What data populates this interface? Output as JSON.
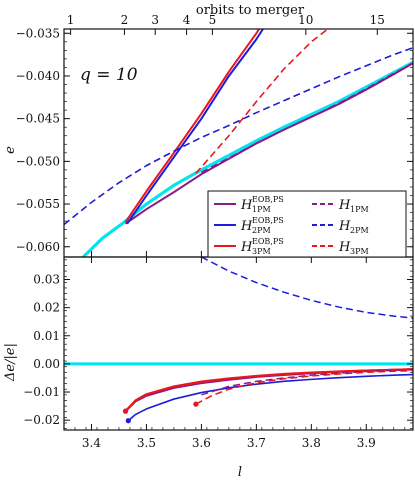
{
  "chart_data": [
    {
      "panel": "top",
      "type": "line",
      "ylabel": "e",
      "secondary_xlabel": "orbits to merger",
      "annotation": "q = 10",
      "xlim": [
        3.35,
        3.985
      ],
      "ylim": [
        -0.0612,
        -0.0345
      ],
      "yticks": [
        -0.035,
        -0.04,
        -0.045,
        -0.05,
        -0.055,
        -0.06
      ],
      "yticklabels": [
        "−0.035",
        "−0.040",
        "−0.045",
        "−0.050",
        "−0.055",
        "−0.060"
      ],
      "top_ticks": [
        {
          "label": "1",
          "l": 3.362
        },
        {
          "label": "2",
          "l": 3.46
        },
        {
          "label": "3",
          "l": 3.516
        },
        {
          "label": "4",
          "l": 3.573
        },
        {
          "label": "5",
          "l": 3.62
        },
        {
          "label": "10",
          "l": 3.79
        },
        {
          "label": "15",
          "l": 3.92
        }
      ],
      "series": [
        {
          "key": "reference",
          "name": "",
          "color": "#00e5ee",
          "dash": "",
          "width": 3.2,
          "points": [
            [
              3.385,
              -0.0612
            ],
            [
              3.42,
              -0.059
            ],
            [
              3.46,
              -0.0571
            ],
            [
              3.5,
              -0.055
            ],
            [
              3.55,
              -0.0528
            ],
            [
              3.6,
              -0.051
            ],
            [
              3.65,
              -0.0493
            ],
            [
              3.7,
              -0.0476
            ],
            [
              3.75,
              -0.046
            ],
            [
              3.8,
              -0.0445
            ],
            [
              3.85,
              -0.043
            ],
            [
              3.9,
              -0.0413
            ],
            [
              3.95,
              -0.0396
            ],
            [
              3.985,
              -0.0384
            ]
          ]
        },
        {
          "key": "H1PM_EOB_PS",
          "name": "H_1PM^EOB,PS",
          "color": "#8b1a8b",
          "dash": "",
          "width": 2,
          "points": [
            [
              3.462,
              -0.0573
            ],
            [
              3.5,
              -0.0556
            ],
            [
              3.55,
              -0.0536
            ],
            [
              3.6,
              -0.0515
            ],
            [
              3.65,
              -0.0497
            ],
            [
              3.7,
              -0.0479
            ],
            [
              3.75,
              -0.0463
            ],
            [
              3.8,
              -0.0448
            ],
            [
              3.85,
              -0.0433
            ],
            [
              3.9,
              -0.0416
            ],
            [
              3.95,
              -0.0398
            ],
            [
              3.985,
              -0.0385
            ]
          ]
        },
        {
          "key": "H2PM_EOB_PS",
          "name": "H_2PM^EOB,PS",
          "color": "#1c1cdc",
          "dash": "",
          "width": 2,
          "points": [
            [
              3.465,
              -0.0573
            ],
            [
              3.5,
              -0.054
            ],
            [
              3.55,
              -0.0495
            ],
            [
              3.6,
              -0.045
            ],
            [
              3.65,
              -0.04
            ],
            [
              3.7,
              -0.0357
            ],
            [
              3.712,
              -0.0345
            ]
          ]
        },
        {
          "key": "H3PM_EOB_PS",
          "name": "H_3PM^EOB,PS",
          "color": "#e8171b",
          "dash": "",
          "width": 2,
          "points": [
            [
              3.462,
              -0.0571
            ],
            [
              3.5,
              -0.0535
            ],
            [
              3.55,
              -0.049
            ],
            [
              3.6,
              -0.0444
            ],
            [
              3.65,
              -0.0395
            ],
            [
              3.7,
              -0.035
            ],
            [
              3.705,
              -0.0345
            ]
          ]
        },
        {
          "key": "H1PM",
          "name": "H_1PM",
          "color": "#8b1a8b",
          "dash": "7,4",
          "width": 1.6,
          "points": [
            [
              3.6,
              -0.0513
            ],
            [
              3.65,
              -0.0496
            ],
            [
              3.7,
              -0.0479
            ],
            [
              3.75,
              -0.0463
            ],
            [
              3.8,
              -0.0448
            ],
            [
              3.85,
              -0.0432
            ],
            [
              3.9,
              -0.0415
            ],
            [
              3.95,
              -0.0397
            ],
            [
              3.985,
              -0.0385
            ]
          ]
        },
        {
          "key": "H2PM",
          "name": "H_2PM",
          "color": "#1c1cdc",
          "dash": "7,4",
          "width": 1.6,
          "points": [
            [
              3.35,
              -0.0574
            ],
            [
              3.4,
              -0.0548
            ],
            [
              3.45,
              -0.0525
            ],
            [
              3.5,
              -0.0505
            ],
            [
              3.55,
              -0.0488
            ],
            [
              3.6,
              -0.0472
            ],
            [
              3.65,
              -0.0458
            ],
            [
              3.7,
              -0.0443
            ],
            [
              3.75,
              -0.0429
            ],
            [
              3.8,
              -0.0415
            ],
            [
              3.85,
              -0.0401
            ],
            [
              3.9,
              -0.0388
            ],
            [
              3.95,
              -0.0375
            ],
            [
              3.985,
              -0.0367
            ]
          ]
        },
        {
          "key": "H3PM",
          "name": "H_3PM",
          "color": "#e8171b",
          "dash": "7,4",
          "width": 1.6,
          "points": [
            [
              3.59,
              -0.0514
            ],
            [
              3.65,
              -0.047
            ],
            [
              3.7,
              -0.043
            ],
            [
              3.75,
              -0.0392
            ],
            [
              3.8,
              -0.036
            ],
            [
              3.83,
              -0.0345
            ]
          ]
        }
      ],
      "legend": {
        "placement": "bottom-right",
        "entries": [
          {
            "key": "H1PM_EOB_PS",
            "base": "H",
            "sub": "1PM",
            "sup": "EOB,PS"
          },
          {
            "key": "H1PM",
            "base": "H",
            "sub": "1PM",
            "sup": ""
          },
          {
            "key": "H2PM_EOB_PS",
            "base": "H",
            "sub": "2PM",
            "sup": "EOB,PS"
          },
          {
            "key": "H2PM",
            "base": "H",
            "sub": "2PM",
            "sup": ""
          },
          {
            "key": "H3PM_EOB_PS",
            "base": "H",
            "sub": "3PM",
            "sup": "EOB,PS"
          },
          {
            "key": "H3PM",
            "base": "H",
            "sub": "3PM",
            "sup": ""
          }
        ]
      }
    },
    {
      "panel": "bottom",
      "type": "line",
      "xlabel": "l",
      "ylabel": "Δe/|e|",
      "xlim": [
        3.35,
        3.985
      ],
      "ylim": [
        -0.0235,
        0.038
      ],
      "xticks": [
        3.4,
        3.5,
        3.6,
        3.7,
        3.8,
        3.9
      ],
      "xticklabels": [
        "3.4",
        "3.5",
        "3.6",
        "3.7",
        "3.8",
        "3.9"
      ],
      "yticks": [
        0.03,
        0.02,
        0.01,
        0.0,
        -0.01,
        -0.02
      ],
      "yticklabels": [
        "0.03",
        "0.02",
        "0.01",
        "0.00",
        "−0.01",
        "−0.02"
      ],
      "series": [
        {
          "key": "reference",
          "name": "",
          "color": "#00e5ee",
          "dash": "",
          "width": 3,
          "points": [
            [
              3.35,
              0.0
            ],
            [
              3.985,
              0.0
            ]
          ]
        },
        {
          "key": "H1PM_EOB_PS",
          "name": "H_1PM^EOB,PS",
          "color": "#8b1a8b",
          "dash": "",
          "width": 2.2,
          "marker_start": true,
          "points": [
            [
              3.462,
              -0.0168
            ],
            [
              3.48,
              -0.0133
            ],
            [
              3.5,
              -0.0113
            ],
            [
              3.55,
              -0.0085
            ],
            [
              3.6,
              -0.0068
            ],
            [
              3.65,
              -0.0056
            ],
            [
              3.7,
              -0.0046
            ],
            [
              3.75,
              -0.0039
            ],
            [
              3.8,
              -0.0033
            ],
            [
              3.85,
              -0.0028
            ],
            [
              3.9,
              -0.0024
            ],
            [
              3.95,
              -0.0021
            ],
            [
              3.985,
              -0.0019
            ]
          ]
        },
        {
          "key": "H2PM_EOB_PS",
          "name": "H_2PM^EOB,PS",
          "color": "#1c1cdc",
          "dash": "",
          "width": 1.6,
          "marker_start": true,
          "points": [
            [
              3.467,
              -0.0202
            ],
            [
              3.48,
              -0.018
            ],
            [
              3.5,
              -0.016
            ],
            [
              3.55,
              -0.0125
            ],
            [
              3.6,
              -0.0102
            ],
            [
              3.65,
              -0.0085
            ],
            [
              3.7,
              -0.0072
            ],
            [
              3.75,
              -0.0062
            ],
            [
              3.8,
              -0.0055
            ],
            [
              3.85,
              -0.0049
            ],
            [
              3.9,
              -0.0044
            ],
            [
              3.95,
              -0.004
            ],
            [
              3.985,
              -0.0038
            ]
          ]
        },
        {
          "key": "H3PM_EOB_PS",
          "name": "H_3PM^EOB,PS",
          "color": "#e8171b",
          "dash": "",
          "width": 2.2,
          "marker_start": true,
          "points": [
            [
              3.462,
              -0.0168
            ],
            [
              3.48,
              -0.013
            ],
            [
              3.5,
              -0.0108
            ],
            [
              3.55,
              -0.008
            ],
            [
              3.6,
              -0.0063
            ],
            [
              3.65,
              -0.0052
            ],
            [
              3.7,
              -0.0043
            ],
            [
              3.75,
              -0.0036
            ],
            [
              3.8,
              -0.0031
            ],
            [
              3.85,
              -0.0027
            ],
            [
              3.9,
              -0.0024
            ],
            [
              3.95,
              -0.0021
            ],
            [
              3.985,
              -0.0019
            ]
          ]
        },
        {
          "key": "H1PM",
          "name": "H_1PM",
          "color": "#8b1a8b",
          "dash": "7,4",
          "width": 1.5,
          "points": [
            [
              3.6,
              -0.011
            ],
            [
              3.65,
              -0.008
            ],
            [
              3.7,
              -0.0062
            ],
            [
              3.75,
              -0.005
            ],
            [
              3.8,
              -0.004
            ],
            [
              3.85,
              -0.0033
            ],
            [
              3.9,
              -0.0027
            ],
            [
              3.95,
              -0.0023
            ],
            [
              3.985,
              -0.0021
            ]
          ]
        },
        {
          "key": "H2PM",
          "name": "H_2PM",
          "color": "#1c1cdc",
          "dash": "7,4",
          "width": 1.5,
          "points": [
            [
              3.6,
              0.038
            ],
            [
              3.65,
              0.033
            ],
            [
              3.7,
              0.0289
            ],
            [
              3.75,
              0.0255
            ],
            [
              3.8,
              0.0226
            ],
            [
              3.85,
              0.0202
            ],
            [
              3.9,
              0.0183
            ],
            [
              3.95,
              0.017
            ],
            [
              3.985,
              0.0163
            ]
          ]
        },
        {
          "key": "H3PM",
          "name": "H_3PM",
          "color": "#e8171b",
          "dash": "7,4",
          "width": 1.5,
          "marker_start": true,
          "points": [
            [
              3.59,
              -0.0143
            ],
            [
              3.62,
              -0.0112
            ],
            [
              3.65,
              -0.009
            ],
            [
              3.7,
              -0.0067
            ],
            [
              3.75,
              -0.0053
            ],
            [
              3.8,
              -0.0043
            ],
            [
              3.85,
              -0.0036
            ],
            [
              3.9,
              -0.003
            ],
            [
              3.95,
              -0.0026
            ],
            [
              3.985,
              -0.0024
            ]
          ]
        }
      ]
    }
  ]
}
